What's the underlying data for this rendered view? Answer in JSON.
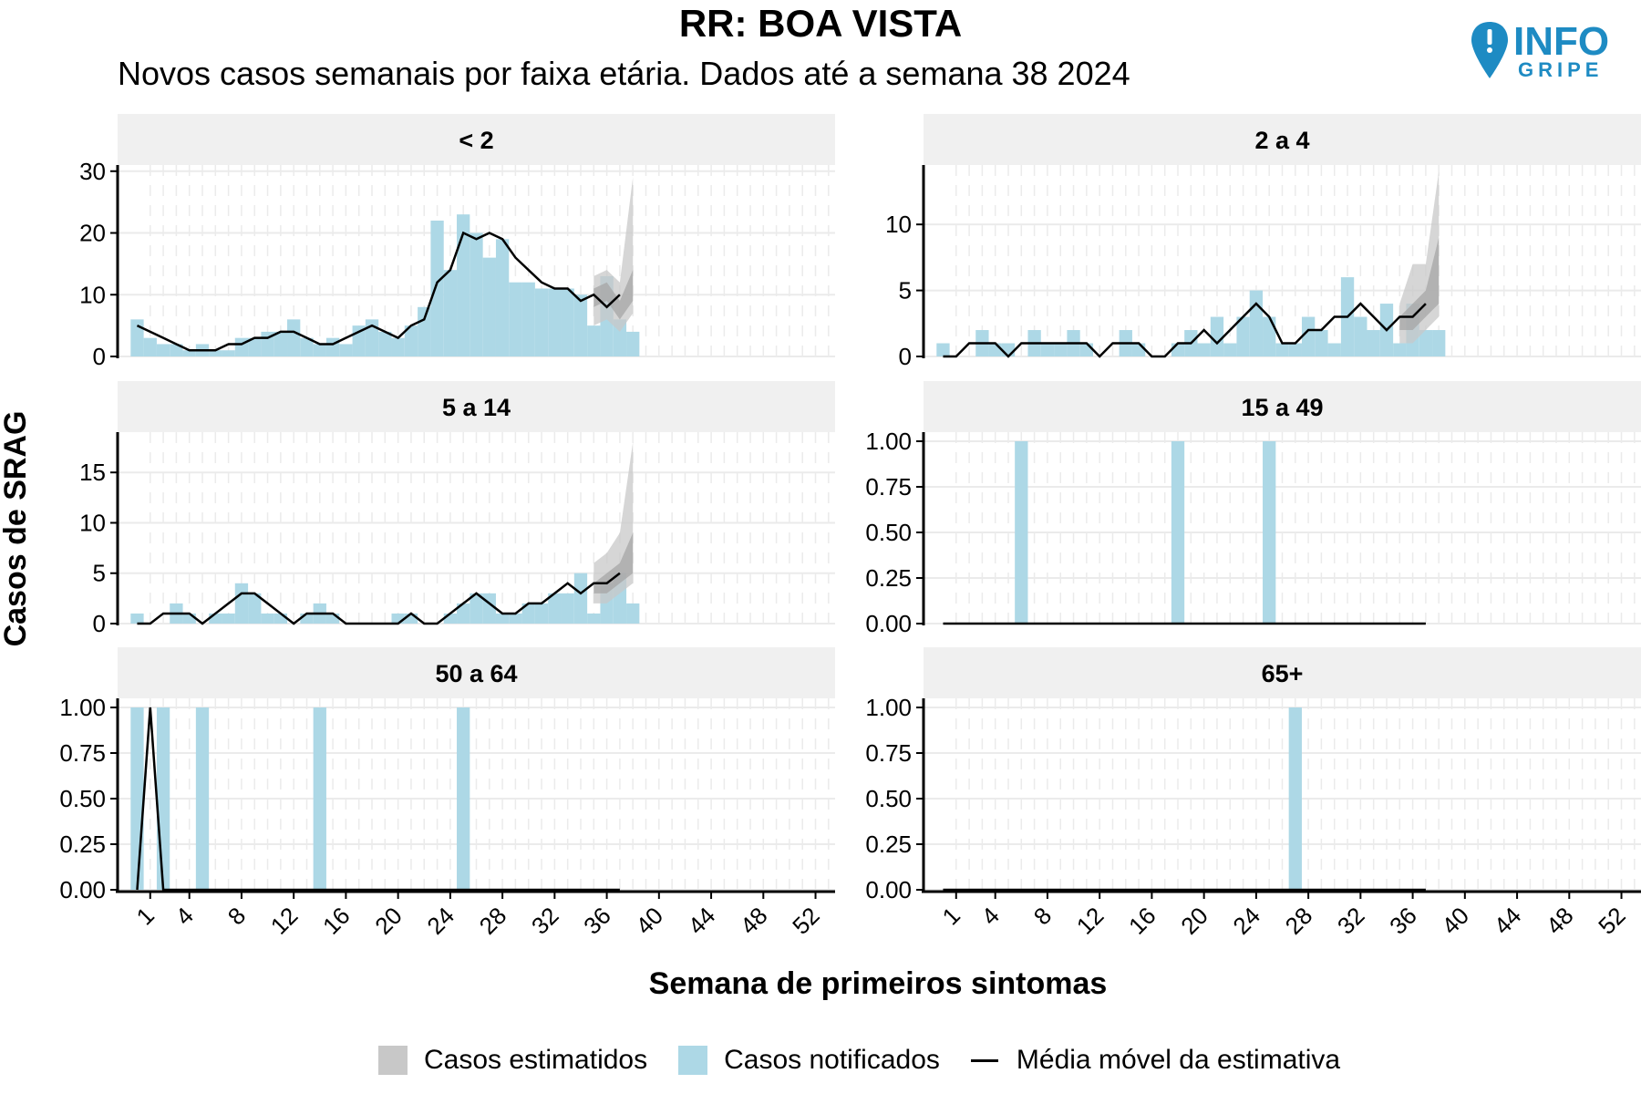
{
  "header": {
    "title": "RR: BOA VISTA",
    "subtitle": "Novos casos semanais por faixa etária. Dados até a semana 38 2024"
  },
  "logo": {
    "text_top": "INFO",
    "text_bottom": "GRIPE",
    "icon": "map-pin-exclamation-icon"
  },
  "colors": {
    "notified": "#ADD8E6",
    "estimated": "#C8C8C8",
    "estimated_inner": "#A6A6A6",
    "line": "#000000",
    "strip_bg": "#F0F0F0",
    "grid": "#EBEBEB"
  },
  "legend": {
    "estimated": "Casos estimatidos",
    "notified": "Casos notificados",
    "moving_average": "Média móvel da estimativa"
  },
  "chart_data": {
    "type": "bar",
    "xlabel": "Semana de primeiros sintomas",
    "ylabel": "Casos de SRAG",
    "x_ticks": [
      1,
      4,
      8,
      12,
      16,
      20,
      24,
      28,
      32,
      36,
      40,
      44,
      48,
      52
    ],
    "xlim": [
      -1.5,
      53.5
    ],
    "panels": [
      {
        "label": "< 2",
        "ylim": [
          0,
          31
        ],
        "y_ticks": [
          0,
          10,
          20,
          30
        ],
        "notified": [
          6,
          3,
          2,
          2,
          1,
          2,
          1,
          1,
          3,
          3,
          4,
          4,
          6,
          3,
          2,
          3,
          2,
          5,
          6,
          4,
          3,
          5,
          8,
          22,
          14,
          23,
          20,
          16,
          19,
          12,
          12,
          11,
          11,
          11,
          10,
          5,
          13,
          6,
          4
        ],
        "moving_average": [
          5,
          4,
          3,
          2,
          1,
          1,
          1,
          2,
          2,
          3,
          3,
          4,
          4,
          3,
          2,
          2,
          3,
          4,
          5,
          4,
          3,
          5,
          6,
          12,
          14,
          20,
          19,
          20,
          19,
          16,
          14,
          12,
          11,
          11,
          9,
          10,
          8,
          10
        ],
        "band_outer": {
          "x": [
            35,
            36,
            37,
            38
          ],
          "low": [
            5,
            6,
            4,
            7
          ],
          "high": [
            13,
            14,
            12,
            29
          ]
        },
        "band_inner": {
          "x": [
            35,
            36,
            37,
            38
          ],
          "low": [
            8,
            9,
            6,
            9
          ],
          "high": [
            11,
            12,
            9,
            14
          ]
        }
      },
      {
        "label": "2 a 4",
        "ylim": [
          0,
          14.5
        ],
        "y_ticks": [
          0,
          5,
          10
        ],
        "notified": [
          1,
          0,
          0,
          2,
          1,
          1,
          0,
          2,
          1,
          1,
          2,
          1,
          0,
          0,
          2,
          1,
          0,
          0,
          1,
          2,
          1,
          3,
          1,
          3,
          5,
          3,
          1,
          1,
          3,
          2,
          1,
          6,
          3,
          2,
          4,
          1,
          4,
          2,
          2
        ],
        "moving_average": [
          0,
          0,
          1,
          1,
          1,
          0,
          1,
          1,
          1,
          1,
          1,
          1,
          0,
          1,
          1,
          1,
          0,
          0,
          1,
          1,
          2,
          1,
          2,
          3,
          4,
          3,
          1,
          1,
          2,
          2,
          3,
          3,
          4,
          3,
          2,
          3,
          3,
          4
        ],
        "band_outer": {
          "x": [
            35,
            36,
            37,
            38
          ],
          "low": [
            1,
            1,
            2,
            3
          ],
          "high": [
            4,
            7,
            7,
            14
          ]
        },
        "band_inner": {
          "x": [
            35,
            36,
            37,
            38
          ],
          "low": [
            2,
            2,
            3,
            4
          ],
          "high": [
            3,
            4,
            5,
            9
          ]
        }
      },
      {
        "label": "5 a 14",
        "ylim": [
          0,
          19
        ],
        "y_ticks": [
          0,
          5,
          10,
          15
        ],
        "notified": [
          1,
          0,
          0,
          2,
          1,
          0,
          1,
          1,
          4,
          3,
          1,
          1,
          0,
          1,
          2,
          1,
          0,
          0,
          0,
          0,
          1,
          1,
          0,
          0,
          1,
          2,
          3,
          3,
          1,
          1,
          2,
          2,
          3,
          3,
          5,
          1,
          4,
          5,
          2
        ],
        "moving_average": [
          0,
          0,
          1,
          1,
          1,
          0,
          1,
          2,
          3,
          3,
          2,
          1,
          0,
          1,
          1,
          1,
          0,
          0,
          0,
          0,
          0,
          1,
          0,
          0,
          1,
          2,
          3,
          2,
          1,
          1,
          2,
          2,
          3,
          4,
          3,
          4,
          4,
          5
        ],
        "band_outer": {
          "x": [
            35,
            36,
            37,
            38
          ],
          "low": [
            2,
            2,
            3,
            4
          ],
          "high": [
            6,
            7,
            9,
            18
          ]
        },
        "band_inner": {
          "x": [
            35,
            36,
            37,
            38
          ],
          "low": [
            3,
            3,
            4,
            5
          ],
          "high": [
            4,
            5,
            6,
            9
          ]
        }
      },
      {
        "label": "15 a 49",
        "ylim": [
          0,
          1.05
        ],
        "y_ticks": [
          0,
          0.25,
          0.5,
          0.75,
          1.0
        ],
        "notified": [
          0,
          0,
          0,
          0,
          0,
          0,
          1,
          0,
          0,
          0,
          0,
          0,
          0,
          0,
          0,
          0,
          0,
          0,
          1,
          0,
          0,
          0,
          0,
          0,
          0,
          1,
          0,
          0,
          0,
          0,
          0,
          0,
          0,
          0,
          0,
          0,
          0,
          0,
          0
        ],
        "moving_average": [
          0,
          0,
          0,
          0,
          0,
          0,
          0,
          0,
          0,
          0,
          0,
          0,
          0,
          0,
          0,
          0,
          0,
          0,
          0,
          0,
          0,
          0,
          0,
          0,
          0,
          0,
          0,
          0,
          0,
          0,
          0,
          0,
          0,
          0,
          0,
          0,
          0,
          0
        ],
        "band_outer": null,
        "band_inner": null
      },
      {
        "label": "50 a 64",
        "ylim": [
          0,
          1.05
        ],
        "y_ticks": [
          0,
          0.25,
          0.5,
          0.75,
          1.0
        ],
        "notified": [
          1,
          0,
          1,
          0,
          0,
          1,
          0,
          0,
          0,
          0,
          0,
          0,
          0,
          0,
          1,
          0,
          0,
          0,
          0,
          0,
          0,
          0,
          0,
          0,
          0,
          1,
          0,
          0,
          0,
          0,
          0,
          0,
          0,
          0,
          0,
          0,
          0,
          0,
          0
        ],
        "moving_average": [
          0,
          1,
          0,
          0,
          0,
          0,
          0,
          0,
          0,
          0,
          0,
          0,
          0,
          0,
          0,
          0,
          0,
          0,
          0,
          0,
          0,
          0,
          0,
          0,
          0,
          0,
          0,
          0,
          0,
          0,
          0,
          0,
          0,
          0,
          0,
          0,
          0,
          0
        ],
        "band_outer": null,
        "band_inner": null
      },
      {
        "label": "65+",
        "ylim": [
          0,
          1.05
        ],
        "y_ticks": [
          0,
          0.25,
          0.5,
          0.75,
          1.0
        ],
        "notified": [
          0,
          0,
          0,
          0,
          0,
          0,
          0,
          0,
          0,
          0,
          0,
          0,
          0,
          0,
          0,
          0,
          0,
          0,
          0,
          0,
          0,
          0,
          0,
          0,
          0,
          0,
          0,
          1,
          0,
          0,
          0,
          0,
          0,
          0,
          0,
          0,
          0,
          0,
          0
        ],
        "moving_average": [
          0,
          0,
          0,
          0,
          0,
          0,
          0,
          0,
          0,
          0,
          0,
          0,
          0,
          0,
          0,
          0,
          0,
          0,
          0,
          0,
          0,
          0,
          0,
          0,
          0,
          0,
          0,
          0,
          0,
          0,
          0,
          0,
          0,
          0,
          0,
          0,
          0,
          0
        ],
        "band_outer": null,
        "band_inner": null
      }
    ]
  }
}
